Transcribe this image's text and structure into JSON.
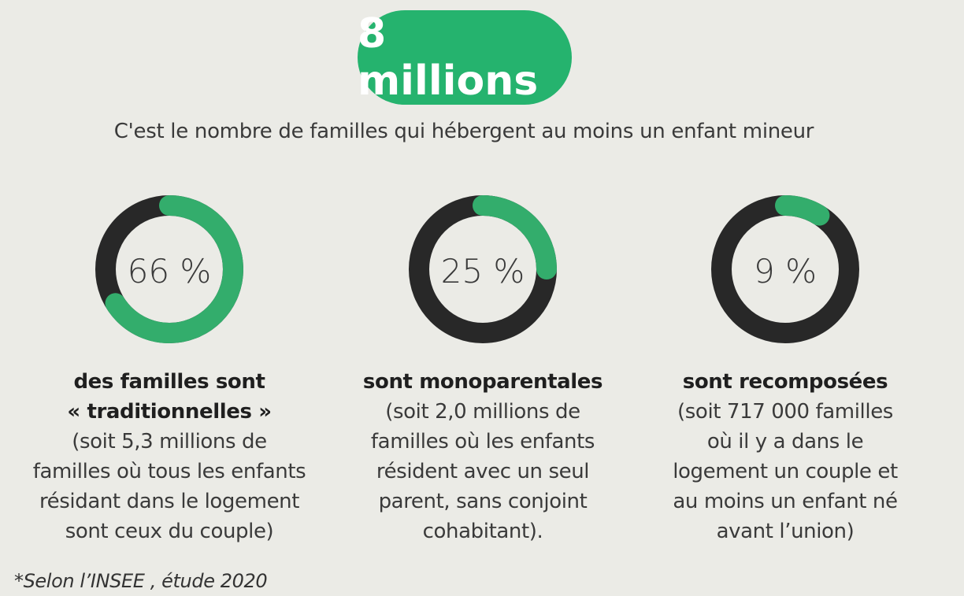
{
  "headline": {
    "value": "8 millions",
    "color": "#25b36e"
  },
  "subtitle": "C'est le nombre de familles qui hébergent au moins un enfant mineur",
  "colors": {
    "ring_track": "#282828",
    "ring_fill": "#33ad6c"
  },
  "chart_data": [
    {
      "type": "pie",
      "value": 66,
      "label": "66 %",
      "caption_bold": [
        "des familles sont",
        "« traditionnelles »"
      ],
      "caption_text": "(soit 5,3 millions de familles où tous les enfants résidant dans le logement sont ceux du couple)"
    },
    {
      "type": "pie",
      "value": 25,
      "label": "25 %",
      "caption_bold": [
        "sont monoparentales"
      ],
      "caption_text": "(soit 2,0 millions de familles où les enfants résident avec un seul parent, sans conjoint cohabitant)."
    },
    {
      "type": "pie",
      "value": 9,
      "label": "9 %",
      "caption_bold": [
        "sont recomposées"
      ],
      "caption_text": "(soit 717 000 familles où il y a dans le logement un couple et au moins un enfant né avant l’union)"
    }
  ],
  "footnote": "*Selon l’INSEE , étude 2020"
}
